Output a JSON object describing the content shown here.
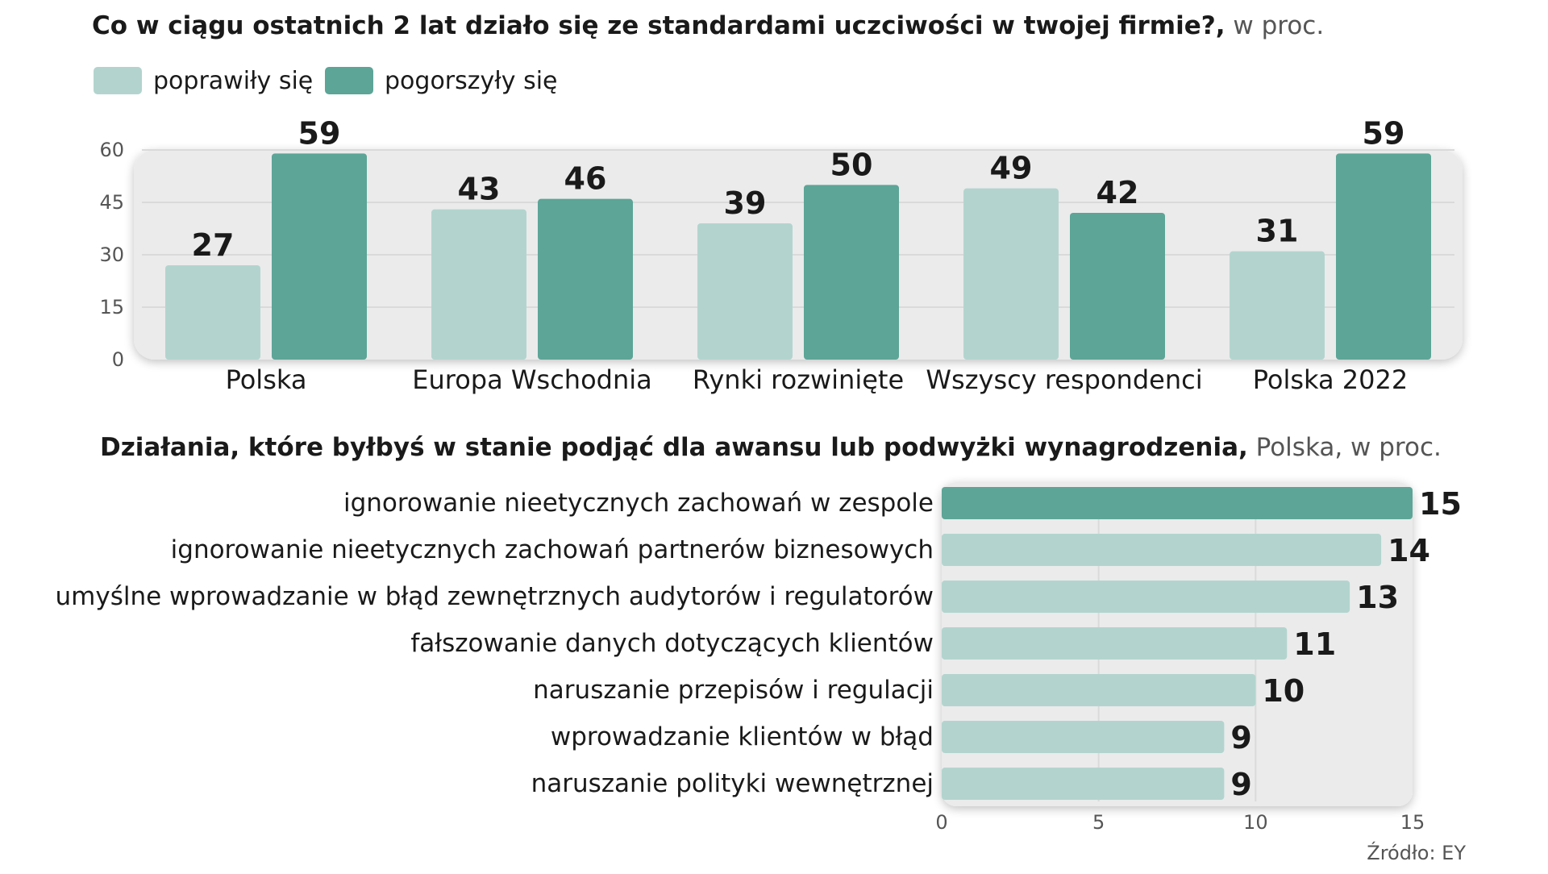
{
  "colors": {
    "light": "#b3d4ce",
    "dark": "#5ca597",
    "panel": "#ebebeb",
    "text": "#1a1a1a",
    "muted": "#555555"
  },
  "chart_data": [
    {
      "type": "bar",
      "title": "Co w ciągu ostatnich 2 lat działo się ze standardami uczciwości w twojej firmie?,",
      "subtitle": " w proc.",
      "categories": [
        "Polska",
        "Europa Wschodnia",
        "Rynki rozwinięte",
        "Wszyscy respondenci",
        "Polska 2022"
      ],
      "series": [
        {
          "name": "poprawiły się",
          "color_key": "light",
          "values": [
            27,
            43,
            39,
            49,
            31
          ]
        },
        {
          "name": "pogorszyły się",
          "color_key": "dark",
          "values": [
            59,
            46,
            50,
            42,
            59
          ]
        }
      ],
      "ylim": [
        0,
        60
      ],
      "yticks": [
        0,
        15,
        30,
        45,
        60
      ],
      "xlabel": "",
      "ylabel": "",
      "grid": true,
      "legend": "top-left"
    },
    {
      "type": "bar",
      "orientation": "horizontal",
      "title": "Działania, które byłbyś w stanie podjąć dla awansu lub podwyżki wynagrodzenia,",
      "subtitle": " Polska, w proc.",
      "categories": [
        "ignorowanie nieetycznych zachowań w zespole",
        "ignorowanie nieetycznych zachowań partnerów biznesowych",
        "umyślne wprowadzanie w błąd zewnętrznych audytorów i regulatorów",
        "fałszowanie danych dotyczących klientów",
        "naruszanie przepisów i regulacji",
        "wprowadzanie klientów w błąd",
        "naruszanie polityki wewnętrznej"
      ],
      "values": [
        15,
        14,
        13,
        11,
        10,
        9,
        9
      ],
      "highlight_index": 0,
      "xlim": [
        0,
        15
      ],
      "xticks": [
        0,
        5,
        10,
        15
      ],
      "grid": true
    }
  ],
  "source": "Źródło: EY"
}
